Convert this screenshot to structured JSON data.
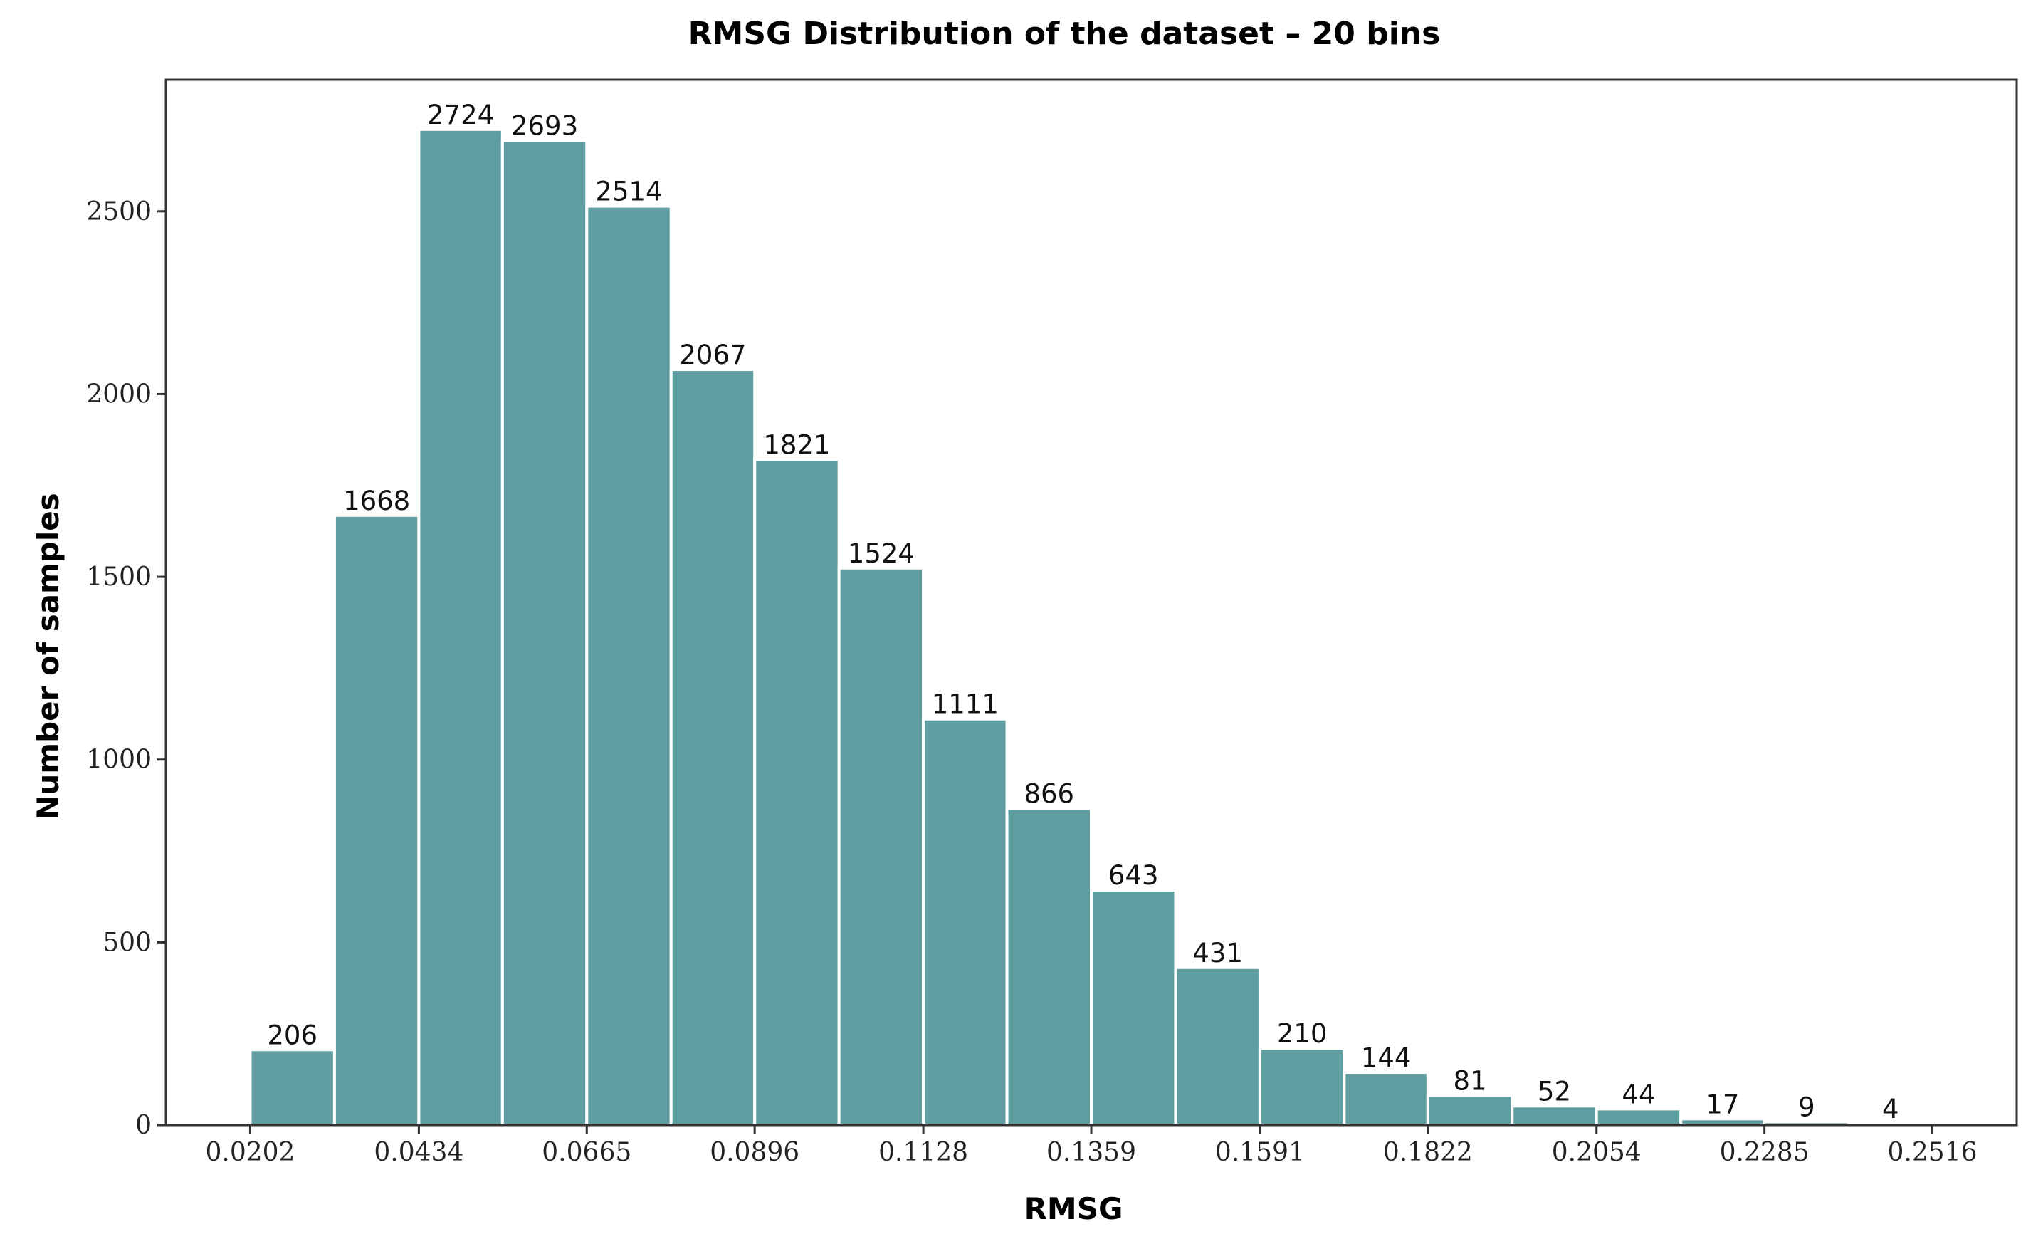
{
  "chart_data": {
    "type": "bar",
    "title": "RMSG Distribution of the dataset – 20 bins",
    "xlabel": "RMSG",
    "ylabel": "Number of samples",
    "bin_edges": [
      0.0202,
      0.0318,
      0.0434,
      0.0549,
      0.0665,
      0.0781,
      0.0896,
      0.1012,
      0.1128,
      0.1243,
      0.1359,
      0.1475,
      0.1591,
      0.1707,
      0.1822,
      0.1938,
      0.2054,
      0.217,
      0.2285,
      0.2401,
      0.2516
    ],
    "values": [
      206,
      1668,
      2724,
      2693,
      2514,
      2067,
      1821,
      1524,
      1111,
      866,
      643,
      431,
      210,
      144,
      81,
      52,
      44,
      17,
      9,
      4
    ],
    "data_labels": [
      "206",
      "1668",
      "2724",
      "2693",
      "2514",
      "2067",
      "1821",
      "1524",
      "1111",
      "866",
      "643",
      "431",
      "210",
      "144",
      "81",
      "52",
      "44",
      "17",
      "9",
      "4"
    ],
    "x_ticks": [
      0.0202,
      0.0434,
      0.0665,
      0.0896,
      0.1128,
      0.1359,
      0.1591,
      0.1822,
      0.2054,
      0.2285,
      0.2516
    ],
    "x_tick_labels": [
      "0.0202",
      "0.0434",
      "0.0665",
      "0.0896",
      "0.1128",
      "0.1359",
      "0.1591",
      "0.1822",
      "0.2054",
      "0.2285",
      "0.2516"
    ],
    "y_ticks": [
      0,
      500,
      1000,
      1500,
      2000,
      2500
    ],
    "y_tick_labels": [
      "0",
      "500",
      "1000",
      "1500",
      "2000",
      "2500"
    ],
    "xlim": [
      0.0086,
      0.2632
    ],
    "ylim": [
      0,
      2860
    ],
    "grid": false,
    "legend": "none",
    "bar_color": "#5f9ea0",
    "bar_edge_color": "#ffffff"
  }
}
